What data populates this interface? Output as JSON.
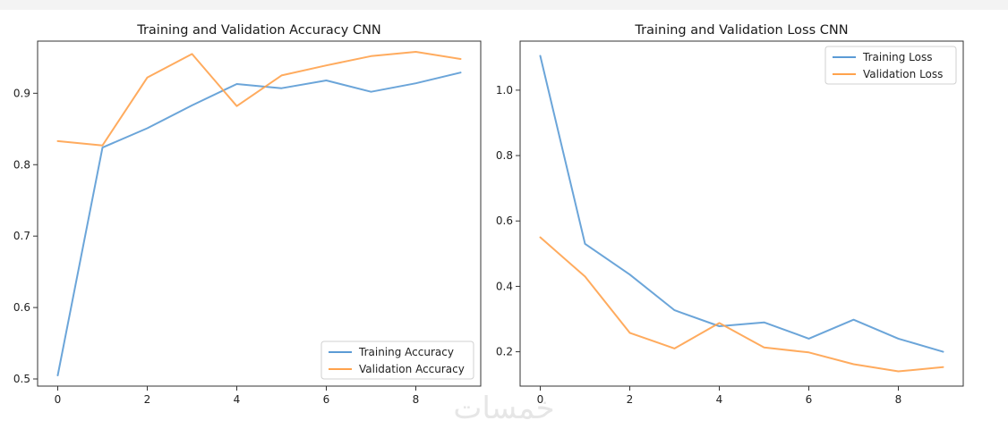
{
  "colors": {
    "training": "#5b9bd5",
    "validation": "#ffa24c",
    "axes": "#333333"
  },
  "watermark": "خمسات",
  "chart_data": [
    {
      "type": "line",
      "title": "Training and Validation Accuracy CNN",
      "xlabel": "",
      "ylabel": "",
      "x": [
        0,
        1,
        2,
        3,
        4,
        5,
        6,
        7,
        8,
        9
      ],
      "xlim": [
        -0.45,
        9.45
      ],
      "ylim": [
        0.49,
        0.973
      ],
      "xticks": [
        0,
        2,
        4,
        6,
        8
      ],
      "yticks": [
        0.5,
        0.6,
        0.7,
        0.8,
        0.9
      ],
      "xtick_labels": [
        "0",
        "2",
        "4",
        "6",
        "8"
      ],
      "ytick_labels": [
        "0.5",
        "0.6",
        "0.7",
        "0.8",
        "0.9"
      ],
      "grid": false,
      "legend_position": "lower-right",
      "series": [
        {
          "name": "Training Accuracy",
          "values": [
            0.505,
            0.824,
            0.851,
            0.883,
            0.913,
            0.907,
            0.918,
            0.902,
            0.914,
            0.929
          ]
        },
        {
          "name": "Validation Accuracy",
          "values": [
            0.833,
            0.827,
            0.922,
            0.955,
            0.882,
            0.925,
            0.939,
            0.952,
            0.958,
            0.948
          ]
        }
      ]
    },
    {
      "type": "line",
      "title": "Training and Validation Loss CNN",
      "xlabel": "",
      "ylabel": "",
      "x": [
        0,
        1,
        2,
        3,
        4,
        5,
        6,
        7,
        8,
        9
      ],
      "xlim": [
        -0.45,
        9.45
      ],
      "ylim": [
        0.095,
        1.15
      ],
      "xticks": [
        0,
        2,
        4,
        6,
        8
      ],
      "yticks": [
        0.2,
        0.4,
        0.6,
        0.8,
        1.0
      ],
      "xtick_labels": [
        "0",
        "2",
        "4",
        "6",
        "8"
      ],
      "ytick_labels": [
        "0.2",
        "0.4",
        "0.6",
        "0.8",
        "1.0"
      ],
      "grid": false,
      "legend_position": "upper-right",
      "series": [
        {
          "name": "Training Loss",
          "values": [
            1.105,
            0.53,
            0.436,
            0.327,
            0.278,
            0.29,
            0.24,
            0.298,
            0.24,
            0.2
          ]
        },
        {
          "name": "Validation Loss",
          "values": [
            0.55,
            0.43,
            0.258,
            0.21,
            0.288,
            0.213,
            0.198,
            0.162,
            0.14,
            0.153
          ]
        }
      ]
    }
  ]
}
